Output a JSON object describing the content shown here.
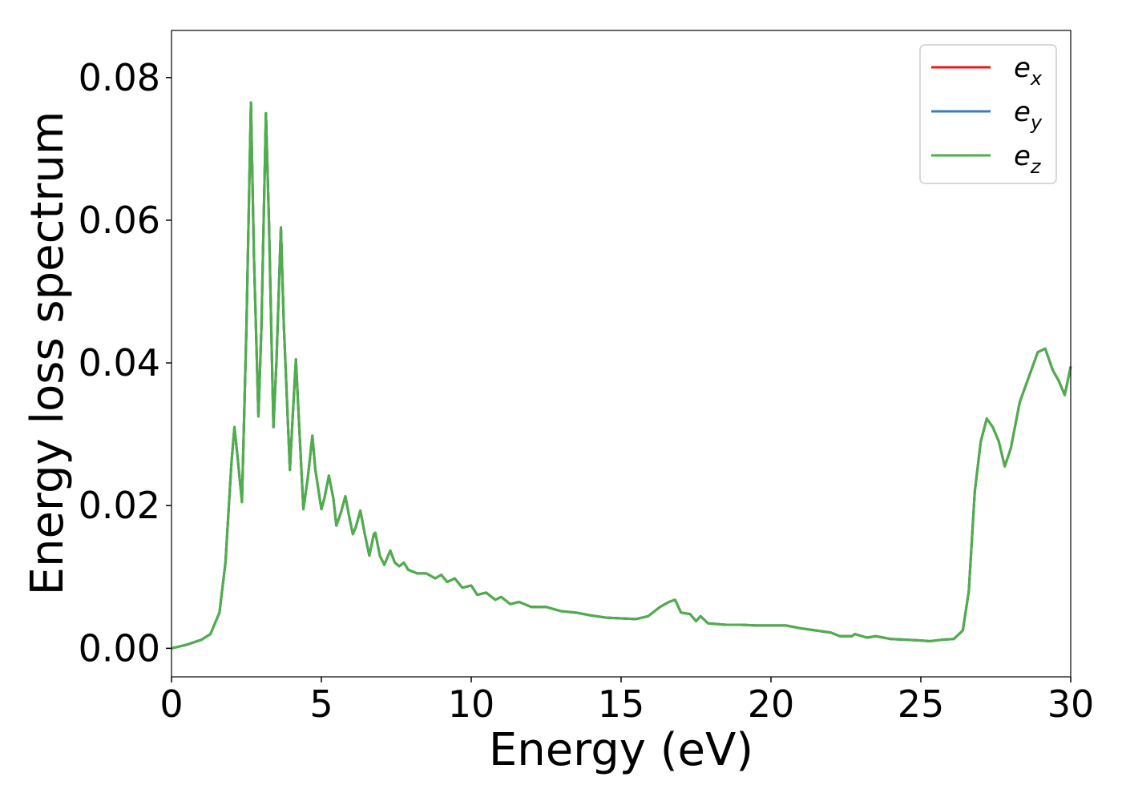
{
  "chart_data": {
    "type": "line",
    "xlabel": "Energy (eV)",
    "ylabel": "Energy loss spectrum",
    "x": [
      0,
      0.5,
      1,
      1.3,
      1.6,
      1.8,
      2.0,
      2.1,
      2.2,
      2.35,
      2.5,
      2.65,
      2.75,
      2.9,
      3.0,
      3.15,
      3.25,
      3.4,
      3.5,
      3.65,
      3.75,
      3.95,
      4.05,
      4.15,
      4.25,
      4.4,
      4.55,
      4.7,
      4.8,
      5.0,
      5.1,
      5.25,
      5.4,
      5.5,
      5.65,
      5.8,
      5.95,
      6.05,
      6.15,
      6.3,
      6.45,
      6.6,
      6.75,
      6.8,
      6.95,
      7.1,
      7.3,
      7.45,
      7.6,
      7.75,
      7.9,
      8.2,
      8.5,
      8.8,
      9.0,
      9.2,
      9.45,
      9.7,
      10.0,
      10.2,
      10.5,
      10.8,
      11.0,
      11.3,
      11.6,
      12,
      12.5,
      13,
      13.5,
      14,
      14.5,
      15,
      15.5,
      15.9,
      16.3,
      16.6,
      16.8,
      17.0,
      17.3,
      17.5,
      17.65,
      17.9,
      18.5,
      19,
      19.5,
      20,
      20.5,
      21,
      21.5,
      22,
      22.3,
      22.7,
      22.8,
      23.2,
      23.5,
      24,
      24.5,
      25,
      25.3,
      25.7,
      26.1,
      26.4,
      26.6,
      26.8,
      27.0,
      27.2,
      27.4,
      27.6,
      27.8,
      28.0,
      28.3,
      28.6,
      28.9,
      29.15,
      29.4,
      29.6,
      29.8,
      30
    ],
    "series": [
      {
        "name": "ex",
        "color": "#e41a1c",
        "values": [
          0,
          0.0005,
          0.0012,
          0.002,
          0.005,
          0.012,
          0.026,
          0.031,
          0.027,
          0.0205,
          0.045,
          0.0765,
          0.055,
          0.0325,
          0.045,
          0.075,
          0.06,
          0.031,
          0.04,
          0.059,
          0.045,
          0.025,
          0.033,
          0.0405,
          0.032,
          0.0195,
          0.024,
          0.0298,
          0.025,
          0.0195,
          0.021,
          0.0242,
          0.021,
          0.0172,
          0.019,
          0.0213,
          0.018,
          0.016,
          0.017,
          0.0193,
          0.016,
          0.013,
          0.016,
          0.0162,
          0.013,
          0.0117,
          0.0137,
          0.012,
          0.0115,
          0.012,
          0.011,
          0.0105,
          0.0105,
          0.0098,
          0.0103,
          0.0093,
          0.0098,
          0.0085,
          0.0088,
          0.0075,
          0.0078,
          0.0068,
          0.0072,
          0.0062,
          0.0065,
          0.0058,
          0.0058,
          0.0052,
          0.005,
          0.0046,
          0.0043,
          0.0042,
          0.0041,
          0.0045,
          0.0058,
          0.0065,
          0.0068,
          0.005,
          0.0048,
          0.0038,
          0.0045,
          0.0035,
          0.0033,
          0.0033,
          0.0032,
          0.0032,
          0.0032,
          0.0028,
          0.0025,
          0.0022,
          0.0017,
          0.0017,
          0.002,
          0.0015,
          0.0017,
          0.0013,
          0.0012,
          0.0011,
          0.001,
          0.0012,
          0.0013,
          0.0025,
          0.008,
          0.022,
          0.029,
          0.0322,
          0.031,
          0.029,
          0.0255,
          0.028,
          0.0345,
          0.038,
          0.0415,
          0.042,
          0.039,
          0.0375,
          0.0355,
          0.0395
        ]
      },
      {
        "name": "ey",
        "color": "#377eb8",
        "values": [
          0,
          0.0005,
          0.0012,
          0.002,
          0.005,
          0.012,
          0.026,
          0.031,
          0.027,
          0.0205,
          0.045,
          0.0765,
          0.055,
          0.0325,
          0.045,
          0.075,
          0.06,
          0.031,
          0.04,
          0.059,
          0.045,
          0.025,
          0.033,
          0.0405,
          0.032,
          0.0195,
          0.024,
          0.0298,
          0.025,
          0.0195,
          0.021,
          0.0242,
          0.021,
          0.0172,
          0.019,
          0.0213,
          0.018,
          0.016,
          0.017,
          0.0193,
          0.016,
          0.013,
          0.016,
          0.0162,
          0.013,
          0.0117,
          0.0137,
          0.012,
          0.0115,
          0.012,
          0.011,
          0.0105,
          0.0105,
          0.0098,
          0.0103,
          0.0093,
          0.0098,
          0.0085,
          0.0088,
          0.0075,
          0.0078,
          0.0068,
          0.0072,
          0.0062,
          0.0065,
          0.0058,
          0.0058,
          0.0052,
          0.005,
          0.0046,
          0.0043,
          0.0042,
          0.0041,
          0.0045,
          0.0058,
          0.0065,
          0.0068,
          0.005,
          0.0048,
          0.0038,
          0.0045,
          0.0035,
          0.0033,
          0.0033,
          0.0032,
          0.0032,
          0.0032,
          0.0028,
          0.0025,
          0.0022,
          0.0017,
          0.0017,
          0.002,
          0.0015,
          0.0017,
          0.0013,
          0.0012,
          0.0011,
          0.001,
          0.0012,
          0.0013,
          0.0025,
          0.008,
          0.022,
          0.029,
          0.0322,
          0.031,
          0.029,
          0.0255,
          0.028,
          0.0345,
          0.038,
          0.0415,
          0.042,
          0.039,
          0.0375,
          0.0355,
          0.0395
        ]
      },
      {
        "name": "ez",
        "color": "#4daf4a",
        "values": [
          0,
          0.0005,
          0.0012,
          0.002,
          0.005,
          0.012,
          0.026,
          0.031,
          0.027,
          0.0205,
          0.045,
          0.0765,
          0.055,
          0.0325,
          0.045,
          0.075,
          0.06,
          0.031,
          0.04,
          0.059,
          0.045,
          0.025,
          0.033,
          0.0405,
          0.032,
          0.0195,
          0.024,
          0.0298,
          0.025,
          0.0195,
          0.021,
          0.0242,
          0.021,
          0.0172,
          0.019,
          0.0213,
          0.018,
          0.016,
          0.017,
          0.0193,
          0.016,
          0.013,
          0.016,
          0.0162,
          0.013,
          0.0117,
          0.0137,
          0.012,
          0.0115,
          0.012,
          0.011,
          0.0105,
          0.0105,
          0.0098,
          0.0103,
          0.0093,
          0.0098,
          0.0085,
          0.0088,
          0.0075,
          0.0078,
          0.0068,
          0.0072,
          0.0062,
          0.0065,
          0.0058,
          0.0058,
          0.0052,
          0.005,
          0.0046,
          0.0043,
          0.0042,
          0.0041,
          0.0045,
          0.0058,
          0.0065,
          0.0068,
          0.005,
          0.0048,
          0.0038,
          0.0045,
          0.0035,
          0.0033,
          0.0033,
          0.0032,
          0.0032,
          0.0032,
          0.0028,
          0.0025,
          0.0022,
          0.0017,
          0.0017,
          0.002,
          0.0015,
          0.0017,
          0.0013,
          0.0012,
          0.0011,
          0.001,
          0.0012,
          0.0013,
          0.0025,
          0.008,
          0.022,
          0.029,
          0.0322,
          0.031,
          0.029,
          0.0255,
          0.028,
          0.0345,
          0.038,
          0.0415,
          0.042,
          0.039,
          0.0375,
          0.0355,
          0.0395
        ]
      }
    ],
    "xlim": [
      0,
      30
    ],
    "xticks": [
      0,
      5,
      10,
      15,
      20,
      25,
      30
    ],
    "ylim": [
      -0.004,
      0.0866
    ],
    "yticks": [
      {
        "value": 0,
        "label": "0.00"
      },
      {
        "value": 0.02,
        "label": "0.02"
      },
      {
        "value": 0.04,
        "label": "0.04"
      },
      {
        "value": 0.06,
        "label": "0.06"
      },
      {
        "value": 0.08,
        "label": "0.08"
      }
    ],
    "grid": false,
    "legend": "upper right"
  }
}
